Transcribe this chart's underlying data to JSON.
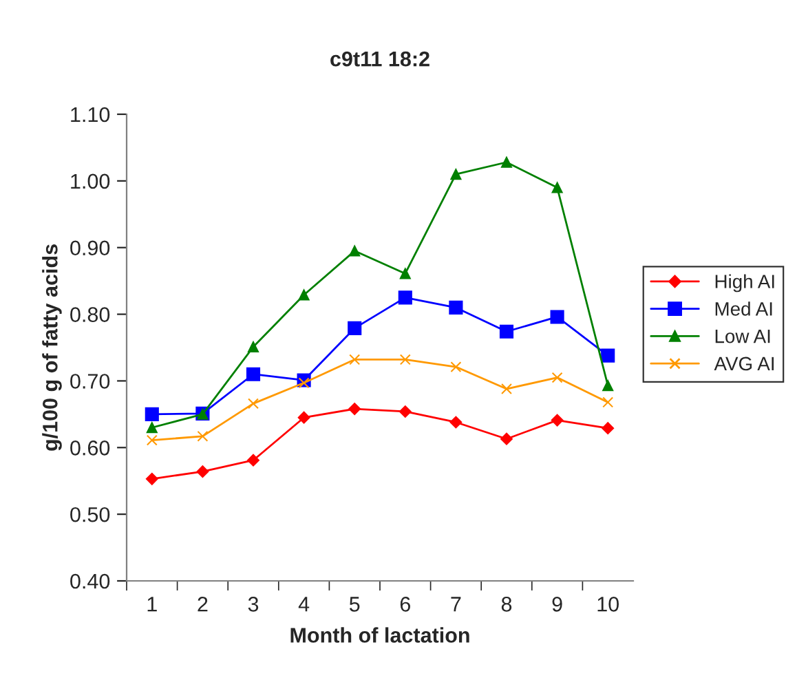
{
  "chart_data": {
    "type": "line",
    "title": "c9t11 18:2",
    "xlabel": "Month of lactation",
    "ylabel": "g/100 g of fatty acids",
    "categories": [
      "1",
      "2",
      "3",
      "4",
      "5",
      "6",
      "7",
      "8",
      "9",
      "10"
    ],
    "series": [
      {
        "name": "High AI",
        "color": "#ff0000",
        "marker": "diamond",
        "values": [
          0.553,
          0.564,
          0.581,
          0.645,
          0.658,
          0.654,
          0.638,
          0.613,
          0.641,
          0.629
        ]
      },
      {
        "name": "Med AI",
        "color": "#0000ff",
        "marker": "square",
        "values": [
          0.65,
          0.651,
          0.71,
          0.701,
          0.779,
          0.825,
          0.81,
          0.774,
          0.796,
          0.738
        ]
      },
      {
        "name": "Low AI",
        "color": "#008000",
        "marker": "triangle",
        "values": [
          0.63,
          0.65,
          0.751,
          0.829,
          0.895,
          0.861,
          1.01,
          1.028,
          0.99,
          0.693
        ]
      },
      {
        "name": "AVG AI",
        "color": "#ff9900",
        "marker": "cross",
        "values": [
          0.611,
          0.617,
          0.666,
          0.697,
          0.732,
          0.732,
          0.721,
          0.688,
          0.705,
          0.668
        ]
      }
    ],
    "ylim": [
      0.4,
      1.1
    ],
    "yticks": [
      {
        "value": 0.4,
        "label": "0.40"
      },
      {
        "value": 0.5,
        "label": "0.50"
      },
      {
        "value": 0.6,
        "label": "0.60"
      },
      {
        "value": 0.7,
        "label": "0.70"
      },
      {
        "value": 0.8,
        "label": "0.80"
      },
      {
        "value": 0.9,
        "label": "0.90"
      },
      {
        "value": 1.0,
        "label": "1.00"
      },
      {
        "value": 1.1,
        "label": "1.10"
      }
    ],
    "grid": false,
    "legend": "right",
    "line_style": "solid"
  }
}
